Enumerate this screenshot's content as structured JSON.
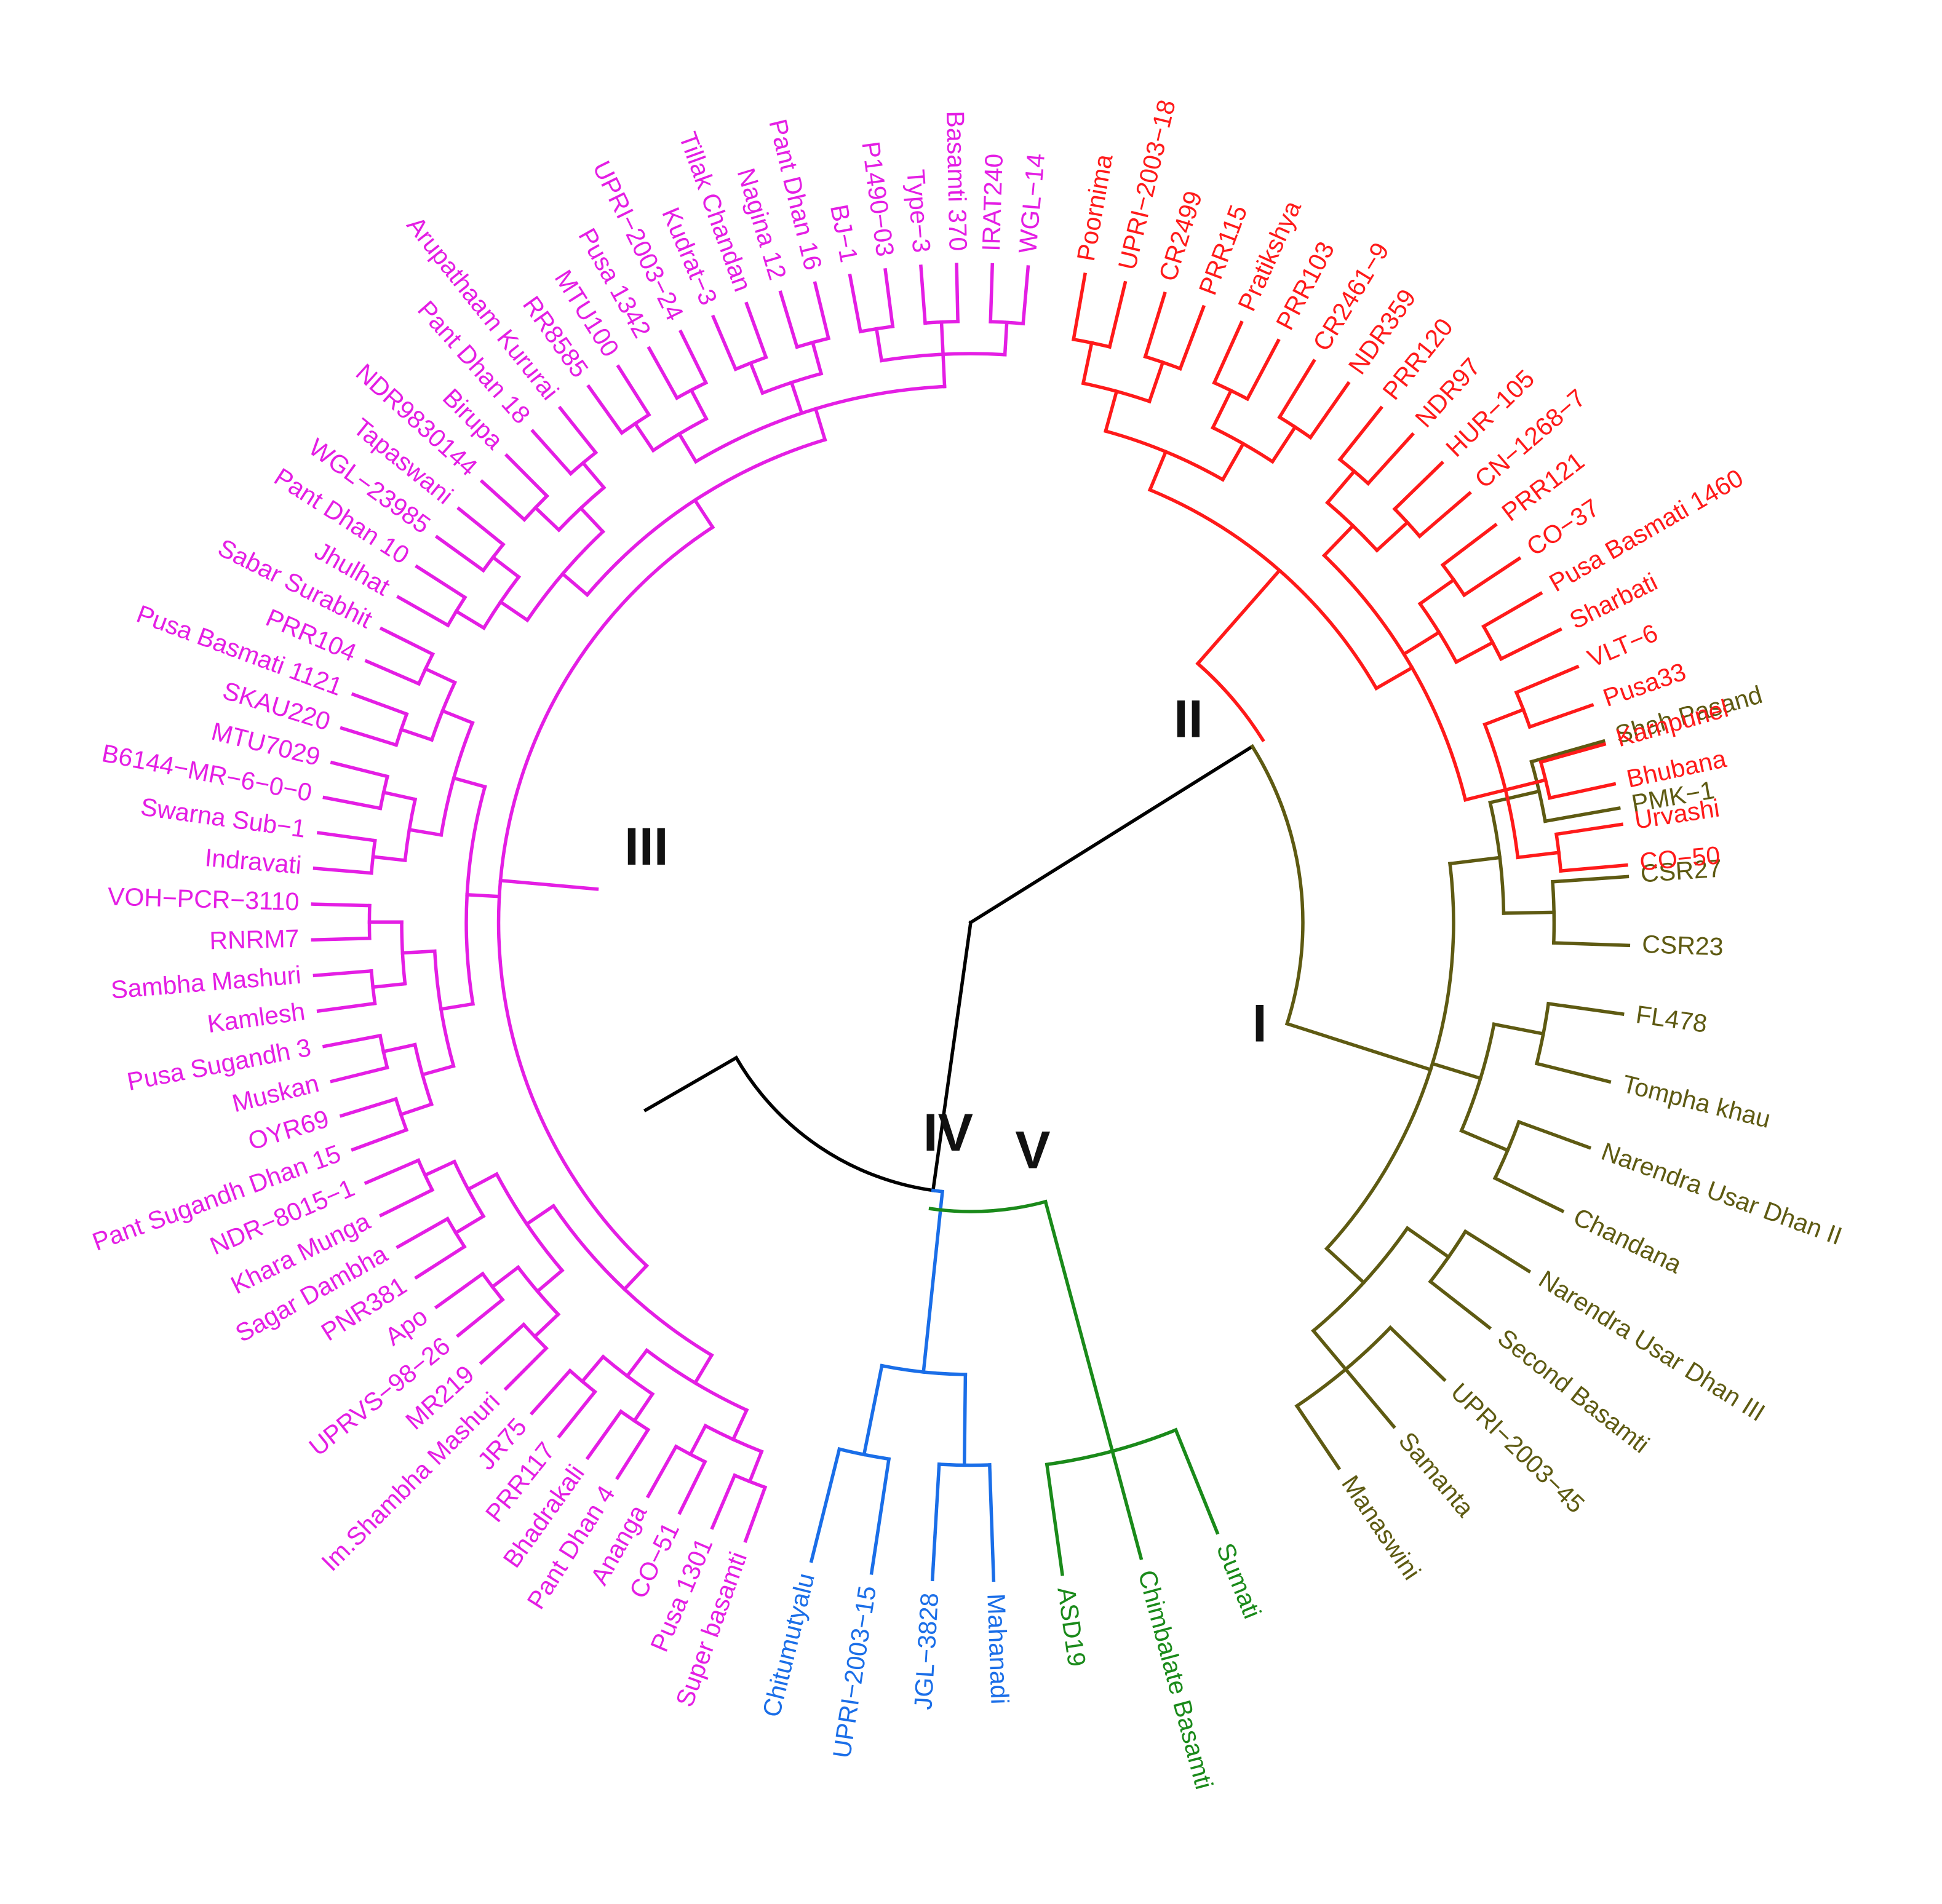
{
  "figure": {
    "type": "circular-dendrogram",
    "colors": {
      "root": "#000000",
      "I": "#5e5a12",
      "II": "#ff1a1a",
      "III": "#e41ee4",
      "IV": "#1a6ee8",
      "V": "#1a8a1a"
    }
  },
  "clusters": [
    {
      "id": "I",
      "label": "I",
      "color": "#5e5a12",
      "taxa": [
        "Shah Pasand",
        "PMK−1",
        "CSR27",
        "CSR23",
        "FL478",
        "Tompha khau",
        "Narendra Usar Dhan II",
        "Chandana",
        "Narendra Usar Dhan III",
        "Second Basamti",
        "UPRI−2003−45",
        "Samanta",
        "Manaswini"
      ]
    },
    {
      "id": "V",
      "label": "V",
      "color": "#1a8a1a",
      "taxa": [
        "Sumati",
        "Chimbalate Basamti",
        "ASD19"
      ]
    },
    {
      "id": "IV",
      "label": "IV",
      "color": "#1a6ee8",
      "taxa": [
        "Mahanadi",
        "JGL−3828",
        "UPRI−2003−15",
        "Chitumutyalu"
      ]
    },
    {
      "id": "III",
      "label": "III",
      "color": "#e41ee4",
      "taxa": [
        "Super basamti",
        "Pusa 1301",
        "CO−51",
        "Ananga",
        "Pant Dhan 4",
        "Bhadrakali",
        "PRR117",
        "JR75",
        "Im.Shambha Mashuri",
        "MR219",
        "UPRVS−98−26",
        "Apo",
        "PNR381",
        "Sagar Dambha",
        "Khara Munga",
        "NDR−8015−1",
        "Pant Sugandh  Dhan 15",
        "OYR69",
        "Muskan",
        "Pusa Sugandh 3",
        "Kamlesh",
        "Sambha Mashuri",
        "RNRM7",
        "VOH−PCR−3110",
        "Indravati",
        "Swarna Sub−1",
        "B6144−MR−6−0−0",
        "MTU7029",
        "SKAU220",
        "Pusa Basmati 1121",
        "PRR104",
        "Sabar Surabhit",
        "Jhulhat",
        "Pant Dhan 10",
        "WGL−23985",
        "Tapaswani",
        "NDR9830144",
        "Birupa",
        "Pant Dhan 18",
        "Arupathaam Kururai",
        "RR8585",
        "MTU100",
        "Pusa 1342",
        "UPRI−2003−24",
        "Kudrat−3",
        "Tillak Chandan",
        "Nagina 12",
        "Pant Dhan 16",
        "BJ−1",
        "P1490−03",
        "Type−3",
        "Basamti 370",
        "IRAT240",
        "WGL−14"
      ]
    },
    {
      "id": "II",
      "label": "II",
      "color": "#ff1a1a",
      "taxa": [
        "Poornima",
        "UPRI−2003−18",
        "CR2499",
        "PRR115",
        "Pratikshya",
        "PRR103",
        "CR2461−9",
        "NDR359",
        "PRR120",
        "NDR97",
        "HUR−105",
        "CN−1268−7",
        "PRR121",
        "CO−37",
        "Pusa Basmati 1460",
        "Sharbati",
        "VLT−6",
        "Pusa33",
        "Karnpunel",
        "Bhubana",
        "Urvashi",
        "CO−50"
      ]
    }
  ]
}
